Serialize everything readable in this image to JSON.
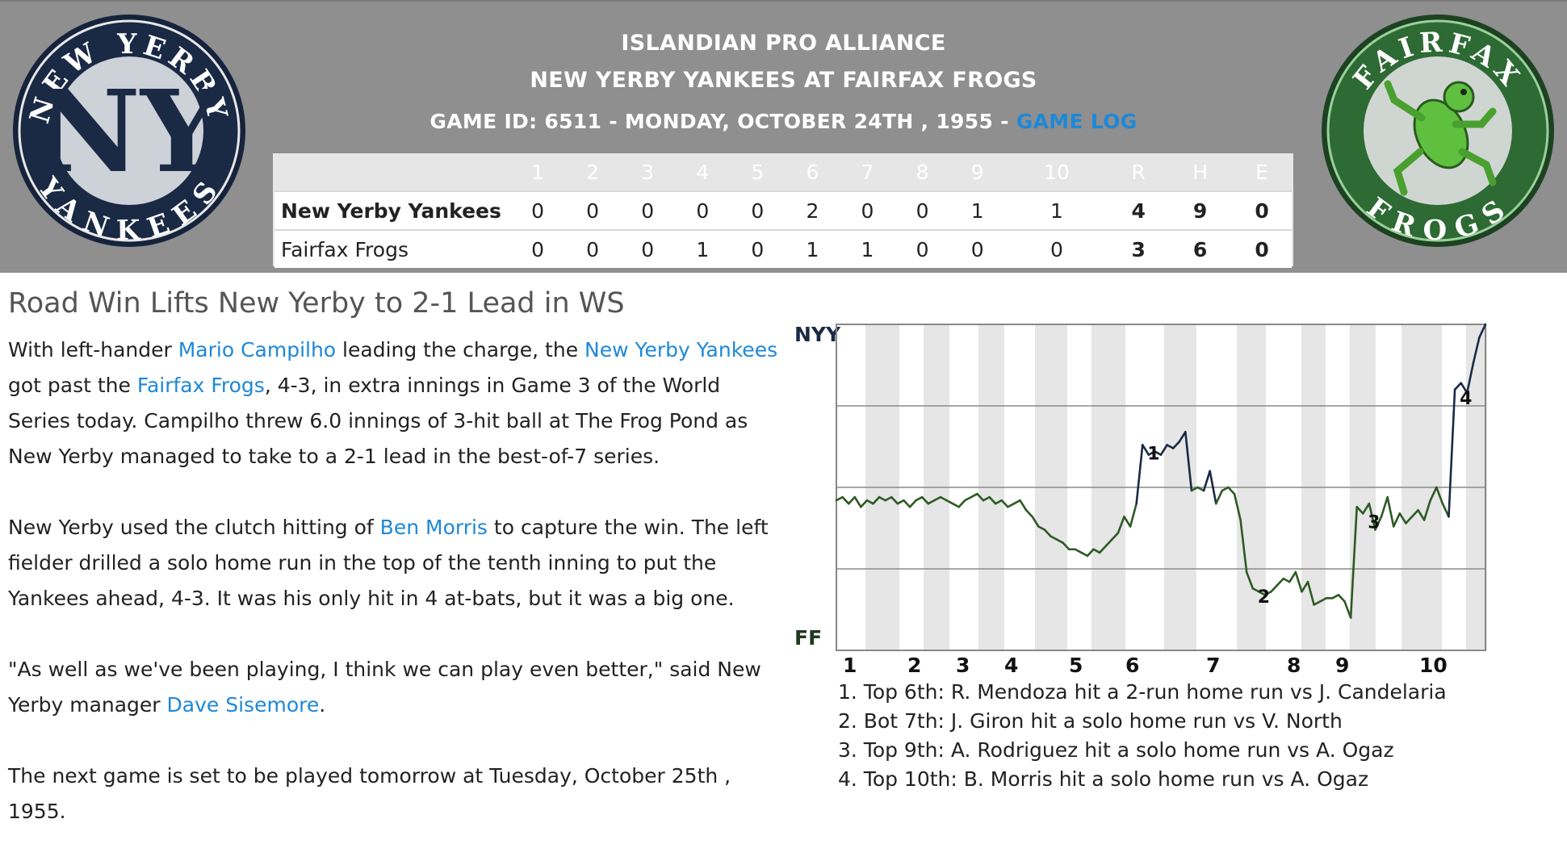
{
  "header": {
    "league": "ISLANDIAN PRO ALLIANCE",
    "matchup": "NEW YERBY YANKEES AT FAIRFAX FROGS",
    "game_info": "GAME ID: 6511 - MONDAY, OCTOBER 24TH , 1955 - ",
    "game_log_link": "GAME LOG"
  },
  "logos": {
    "away": {
      "icon": "yankees-logo-icon",
      "text": "NEW YERBY YANKEES",
      "colors": {
        "ring": "#1a2a45",
        "inner": "#cfd3da"
      }
    },
    "home": {
      "icon": "frog-logo-icon",
      "text": "FAIRFAX FROGS",
      "colors": {
        "ring": "#2e6a34",
        "inner": "#cfd6d2",
        "frog": "#5fbf3f"
      }
    }
  },
  "linescore": {
    "columns": [
      "1",
      "2",
      "3",
      "4",
      "5",
      "6",
      "7",
      "8",
      "9",
      "10",
      "R",
      "H",
      "E"
    ],
    "rows": [
      {
        "team": "New Yerby Yankees",
        "cells": [
          "0",
          "0",
          "0",
          "0",
          "0",
          "2",
          "0",
          "0",
          "1",
          "1",
          "4",
          "9",
          "0"
        ]
      },
      {
        "team": "Fairfax Frogs",
        "cells": [
          "0",
          "0",
          "0",
          "1",
          "0",
          "1",
          "1",
          "0",
          "0",
          "0",
          "3",
          "6",
          "0"
        ]
      }
    ]
  },
  "article": {
    "headline": "Road Win Lifts New Yerby to 2-1 Lead in WS",
    "p1": {
      "t1": "With left-hander ",
      "link1": "Mario Campilho",
      "t2": " leading the charge, the ",
      "link2": "New Yerby Yankees",
      "t3": " got past the ",
      "link3": "Fairfax Frogs",
      "t4": ", 4-3, in extra innings in Game 3 of the World Series today. Campilho threw 6.0 innings of 3-hit ball at The Frog Pond as New Yerby managed to take to a 2-1 lead in the best-of-7 series."
    },
    "p2": {
      "t1": "New Yerby used the clutch hitting of ",
      "link1": "Ben Morris",
      "t2": " to capture the win. The left fielder drilled a solo home run in the top of the tenth inning to put the Yankees ahead, 4-3. It was his only hit in 4 at-bats, but it was a big one."
    },
    "p3": {
      "t1": "\"As well as we've been playing, I think we can play even better,\" said New Yerby manager ",
      "link1": "Dave Sisemore",
      "t2": "."
    },
    "p4": "The next game is set to be played tomorrow at Tuesday, October 25th , 1955."
  },
  "chart_data": {
    "type": "line",
    "top_label": "NYY",
    "bottom_label": "FF",
    "x_labels": [
      "1",
      "2",
      "3",
      "4",
      "5",
      "6",
      "7",
      "8",
      "9",
      "10"
    ],
    "ylim": [
      0,
      1
    ],
    "colors": {
      "nyy": "#1a2a45",
      "ff": "#2e5a25",
      "band": "#e6e6e6"
    },
    "series": [
      {
        "values": [
          0.46,
          0.47,
          0.45,
          0.47,
          0.44,
          0.46,
          0.45,
          0.47,
          0.46,
          0.47,
          0.45,
          0.46,
          0.44,
          0.46,
          0.47,
          0.45,
          0.46,
          0.47,
          0.46,
          0.45,
          0.44,
          0.46,
          0.47,
          0.48,
          0.46,
          0.47,
          0.45,
          0.46,
          0.44,
          0.45,
          0.46,
          0.43,
          0.41,
          0.38,
          0.37,
          0.35,
          0.34,
          0.33,
          0.31,
          0.31,
          0.3,
          0.29,
          0.31,
          0.3,
          0.32,
          0.34,
          0.36,
          0.41,
          0.38,
          0.45,
          0.63,
          0.6,
          0.61,
          0.6,
          0.63,
          0.62,
          0.64,
          0.67,
          0.49,
          0.5,
          0.49,
          0.55,
          0.45,
          0.49,
          0.5,
          0.48,
          0.4,
          0.24,
          0.19,
          0.18,
          0.17,
          0.18,
          0.2,
          0.22,
          0.21,
          0.24,
          0.18,
          0.21,
          0.14,
          0.15,
          0.16,
          0.16,
          0.17,
          0.15,
          0.1,
          0.44,
          0.42,
          0.45,
          0.37,
          0.41,
          0.47,
          0.38,
          0.42,
          0.39,
          0.41,
          0.43,
          0.4,
          0.46,
          0.5,
          0.45,
          0.41,
          0.8,
          0.82,
          0.79,
          0.88,
          0.96,
          1.0
        ]
      }
    ],
    "annotations": [
      {
        "label": "1",
        "index": 50
      },
      {
        "label": "2",
        "index": 68
      },
      {
        "label": "3",
        "index": 86
      },
      {
        "label": "4",
        "index": 101
      }
    ],
    "notes": [
      "1. Top 6th: R. Mendoza hit a 2-run home run vs J. Candelaria",
      "2. Bot 7th: J. Giron hit a solo home run vs V. North",
      "3. Top 9th: A. Rodriguez hit a solo home run vs A. Ogaz",
      "4. Top 10th: B. Morris hit a solo home run vs A. Ogaz"
    ]
  }
}
